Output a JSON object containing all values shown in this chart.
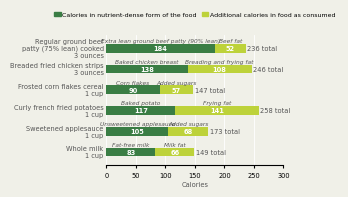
{
  "categories": [
    "Whole milk\n1 cup",
    "Sweetened applesauce\n1 cup",
    "Curly french fried potatoes\n1 cup",
    "Frosted corn flakes cereal\n1 cup",
    "Breaded fried chicken strips\n3 ounces",
    "Regular ground beef\npatty (75% lean) cooked\n3 ounces"
  ],
  "nutrient_dense_values": [
    83,
    105,
    117,
    90,
    138,
    184
  ],
  "additional_values": [
    66,
    68,
    141,
    57,
    108,
    52
  ],
  "totals": [
    149,
    173,
    258,
    147,
    246,
    236
  ],
  "nutrient_dense_labels": [
    "83",
    "105",
    "117",
    "90",
    "138",
    "184"
  ],
  "additional_labels": [
    "66",
    "68",
    "141",
    "57",
    "108",
    "52"
  ],
  "nutrient_dense_annotations": [
    "Fat-free milk",
    "Unsweetened applesauce",
    "Baked potato",
    "Corn flakes",
    "Baked chicken breast",
    "Extra lean ground beef patty (90% lean)"
  ],
  "additional_annotations": [
    "Milk fat",
    "Added sugars",
    "Frying fat",
    "Added sugars",
    "Breading and frying fat",
    "Beef fat"
  ],
  "color_green": "#3a7d44",
  "color_lime": "#bdd23a",
  "color_text": "#555555",
  "legend_label1": "Calories in nutrient-dense form of the food",
  "legend_label2": "Additional calories in food as consumed",
  "xlabel": "Calories",
  "xlim": [
    0,
    300
  ],
  "xticks": [
    0,
    50,
    100,
    150,
    200,
    250,
    300
  ],
  "background_color": "#f0f0e8",
  "bar_height": 0.42,
  "label_fontsize": 4.8,
  "tick_fontsize": 4.8,
  "annot_fontsize": 4.2,
  "total_fontsize": 4.8,
  "legend_fontsize": 4.5
}
